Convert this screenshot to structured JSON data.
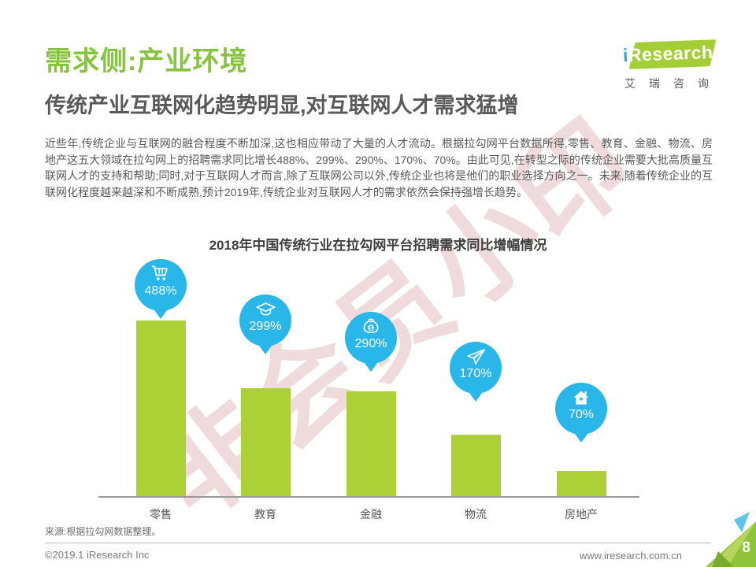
{
  "page": {
    "title": "需求侧:产业环境",
    "subtitle": "传统产业互联网化趋势明显,对互联网人才需求猛增",
    "body": "近些年,传统企业与互联网的融合程度不断加深,这也相应带动了大量的人才流动。根据拉勾网平台数据所得,零售、教育、金融、物流、房地产这五大领域在拉勾网上的招聘需求同比增长488%、299%、290%、170%、70%。由此可见,在转型之际的传统企业需要大批高质量互联网人才的支持和帮助;同时,对于互联网人才而言,除了互联网公司以外,传统企业也将是他们的职业选择方向之一。未来,随着传统企业的互联网化程度越来越深和不断成熟,预计2019年,传统企业对互联网人才的需求依然会保持强增长趋势。",
    "watermark": "非会员小印",
    "source": "来源:根据拉勾网数据整理。",
    "footer": {
      "copyright": "©2019.1 iResearch Inc",
      "website": "www.iresearch.com.cn",
      "page_number": "8"
    }
  },
  "logo": {
    "brand_i": "i",
    "brand_rest": "Research",
    "brand_cn": "艾瑞咨询"
  },
  "colors": {
    "title_green": "#85C43C",
    "bar_green": "#ACD136",
    "bubble_blue": "#29B7E9",
    "text_gray": "#595959"
  },
  "chart_data": {
    "type": "bar",
    "title": "2018年中国传统行业在拉勾网平台招聘需求同比增幅情况",
    "categories": [
      "零售",
      "教育",
      "金融",
      "物流",
      "房地产"
    ],
    "values": [
      488,
      299,
      290,
      170,
      70
    ],
    "value_labels": [
      "488%",
      "299%",
      "290%",
      "170%",
      "70%"
    ],
    "unit": "%",
    "icons": [
      "cart-icon",
      "graduation-cap-icon",
      "money-bag-icon",
      "paper-plane-icon",
      "house-icon"
    ],
    "bar_color": "#ACD136",
    "bubble_color": "#29B7E9",
    "ylim": [
      0,
      530
    ],
    "grid": false,
    "legend": false,
    "xlabel": "",
    "ylabel": ""
  }
}
